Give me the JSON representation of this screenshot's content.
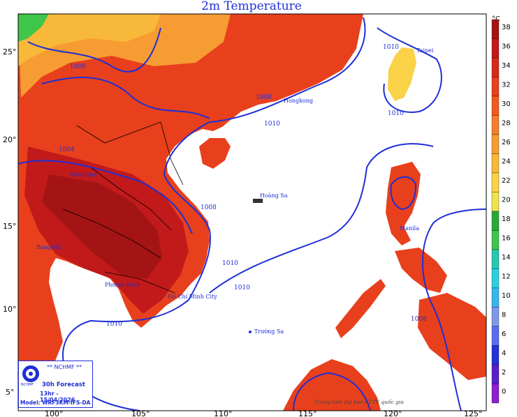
{
  "title": "2m Temperature",
  "unit": "°C",
  "lat_labels": [
    "25°",
    "20°",
    "15°",
    "10°",
    "5°"
  ],
  "lon_labels": [
    "100°",
    "105°",
    "110°",
    "115°",
    "120°",
    "125°"
  ],
  "isobar_labels": [
    "1000",
    "1004",
    "1008",
    "1010",
    "1010",
    "1010",
    "1010",
    "1008",
    "1010",
    "1008",
    "1010"
  ],
  "places": {
    "taipei": "Taipei",
    "hongkong": "Hongkong",
    "vientiane": "Vientiane",
    "hoangsa": "Hoàng Sa",
    "manila": "Manila",
    "bangkok": "Bangkok",
    "phnompenh": "Phnom Penh",
    "hcmc": "Hồ Chí Minh City",
    "truongsa": "Trường Sa"
  },
  "info": {
    "agency": "** NCHMF **",
    "logo_text": "NCHMF",
    "forecast": "30h Forecast",
    "datetime": "13hr - 15/04/2026",
    "model": "Model: WRF3KM-IFS-DA"
  },
  "credit": "Trung tâm Dự báo KTTV quốc gia",
  "colorbar": {
    "levels": [
      "38",
      "36",
      "34",
      "32",
      "30",
      "28",
      "26",
      "24",
      "22",
      "20",
      "18",
      "16",
      "14",
      "12",
      "10",
      "8",
      "6",
      "4",
      "2",
      "0"
    ],
    "colors": [
      "#a41414",
      "#c21a1a",
      "#d62a1a",
      "#e8401c",
      "#f25a1f",
      "#f57d2a",
      "#f79c32",
      "#f8b83a",
      "#f9d247",
      "#f0e24e",
      "#2aa83a",
      "#3fc54a",
      "#28c7b1",
      "#2bd0dc",
      "#39b5ee",
      "#7f99e9",
      "#5b6bf0",
      "#2333d6",
      "#5b1fc9",
      "#8e1fcf"
    ]
  },
  "legend_colors": {
    "sea": "#ffffff",
    "isobar": "#1f2fd6",
    "border": "#000000"
  }
}
